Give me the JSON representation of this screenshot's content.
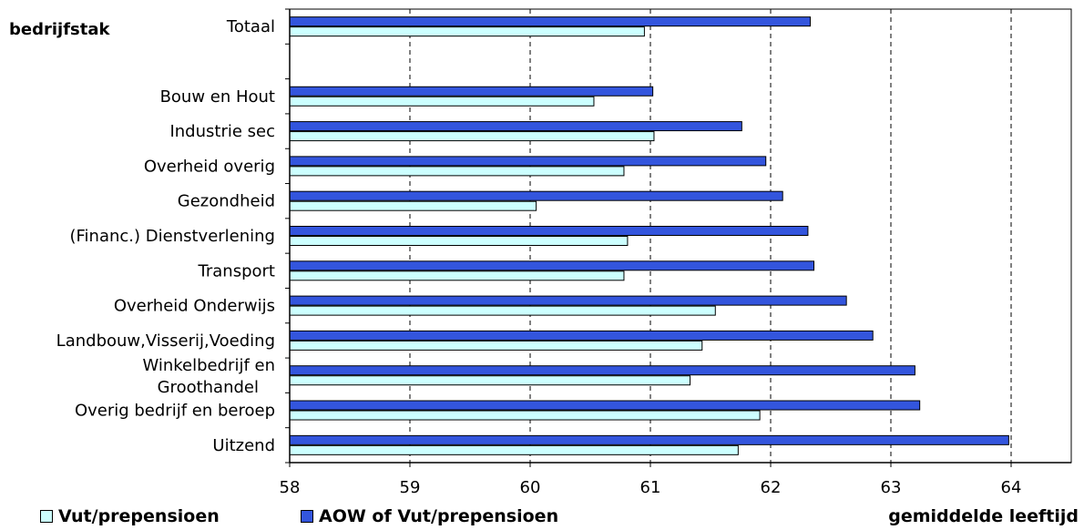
{
  "chart_data": {
    "type": "bar",
    "orientation": "horizontal",
    "category_header": "bedrijfstak",
    "categories": [
      "Totaal",
      "",
      "Bouw en Hout",
      "Industrie sec",
      "Overheid overig",
      "Gezondheid",
      "(Financ.) Dienstverlening",
      "Transport",
      "Overheid Onderwijs",
      "Landbouw,Visserij,Voeding",
      "Winkelbedrijf en Groothandel",
      "Overig bedrijf en beroep",
      "Uitzend"
    ],
    "series": [
      {
        "name": "AOW of Vut/prepensioen",
        "color": "#3355dd",
        "values": [
          62.33,
          null,
          61.02,
          61.76,
          61.96,
          62.1,
          62.31,
          62.36,
          62.63,
          62.85,
          63.2,
          63.24,
          63.98
        ]
      },
      {
        "name": "Vut/prepensioen",
        "color": "#ccffff",
        "values": [
          60.95,
          null,
          60.53,
          61.03,
          60.78,
          60.05,
          60.81,
          60.78,
          61.54,
          61.43,
          61.33,
          61.91,
          61.73
        ]
      }
    ],
    "xlabel": "gemiddelde leeftijd",
    "xlim": [
      58,
      64.5
    ],
    "xticks": [
      "58",
      "59",
      "60",
      "61",
      "62",
      "63",
      "64"
    ],
    "grid": "vertical dashed",
    "legend": "bottom-left"
  }
}
